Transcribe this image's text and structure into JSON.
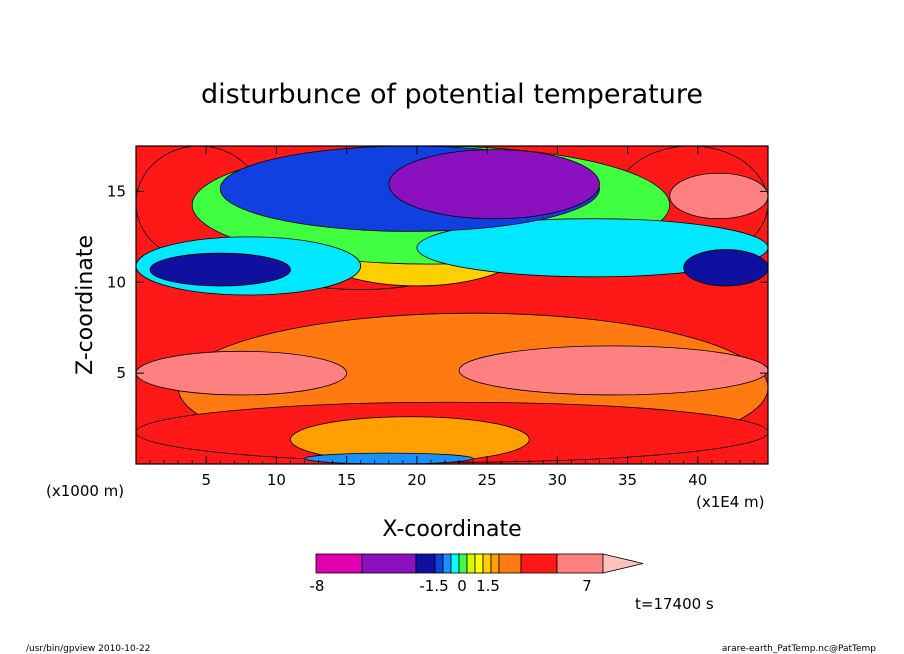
{
  "chart_data": {
    "type": "heatmap",
    "title": "disturbunce of potential temperature",
    "xlabel": "X-coordinate",
    "ylabel": "Z-coordinate",
    "x_unit": "(x1E4 m)",
    "y_unit": "(x1000 m)",
    "xlim": [
      0,
      45
    ],
    "ylim": [
      0,
      17.5
    ],
    "x_ticks": [
      "5",
      "10",
      "15",
      "20",
      "25",
      "30",
      "35",
      "40"
    ],
    "y_ticks": [
      "5",
      "10",
      "15"
    ],
    "colorbar_labels": [
      "-8",
      "-1.5",
      "0",
      "1.5",
      "7"
    ],
    "colorbar_colors": [
      "#e000b0",
      "#8a10c0",
      "#1010a0",
      "#1040e0",
      "#1890ff",
      "#00ffff",
      "#40ff40",
      "#d0ff00",
      "#ffff00",
      "#ffd000",
      "#ffa000",
      "#ff7a10",
      "#ff1818",
      "#ff8080",
      "#ffc0c0"
    ],
    "time_label": "t=17400 s",
    "regions": [
      {
        "level": "4",
        "x": [
          3,
          45
        ],
        "z": [
          8.3,
          0.1
        ]
      },
      {
        "level": "5",
        "x": [
          0,
          45
        ],
        "z": [
          3.4,
          0.1
        ]
      },
      {
        "level": "5",
        "x": [
          0,
          9
        ],
        "z": [
          17.5,
          11.2
        ]
      },
      {
        "level": "5",
        "x": [
          34,
          45
        ],
        "z": [
          17.5,
          11.2
        ]
      },
      {
        "level": "5",
        "x": [
          10,
          22
        ],
        "z": [
          11.8,
          9.6
        ]
      },
      {
        "level": "6",
        "x": [
          0,
          15
        ],
        "z": [
          6.2,
          3.8
        ]
      },
      {
        "level": "6",
        "x": [
          23,
          45
        ],
        "z": [
          6.5,
          3.8
        ]
      },
      {
        "level": "6",
        "x": [
          38,
          45
        ],
        "z": [
          16,
          13.5
        ]
      },
      {
        "level": "3",
        "x": [
          12,
          28
        ],
        "z": [
          14.5,
          9.8
        ]
      },
      {
        "level": "-2",
        "x": [
          4,
          38
        ],
        "z": [
          17.5,
          11
        ]
      },
      {
        "level": "-3",
        "x": [
          0,
          16
        ],
        "z": [
          12.5,
          9.3
        ]
      },
      {
        "level": "-3",
        "x": [
          20,
          45
        ],
        "z": [
          13.5,
          10.3
        ]
      },
      {
        "level": "-4",
        "x": [
          6,
          33
        ],
        "z": [
          17.5,
          12.8
        ]
      },
      {
        "level": "-5",
        "x": [
          1,
          11
        ],
        "z": [
          11.6,
          9.8
        ]
      },
      {
        "level": "-5",
        "x": [
          39,
          45
        ],
        "z": [
          11.8,
          9.8
        ]
      },
      {
        "level": "-6",
        "x": [
          18,
          33
        ],
        "z": [
          17.3,
          13.5
        ]
      },
      {
        "level": "2",
        "x": [
          11,
          28
        ],
        "z": [
          2.6,
          0.1
        ]
      },
      {
        "level": "-1",
        "x": [
          12,
          24
        ],
        "z": [
          0.6,
          0
        ]
      }
    ]
  },
  "footer": {
    "left": "/usr/bin/gpview   2010-10-22",
    "right": "arare-earth_PatTemp.nc@PatTemp"
  }
}
